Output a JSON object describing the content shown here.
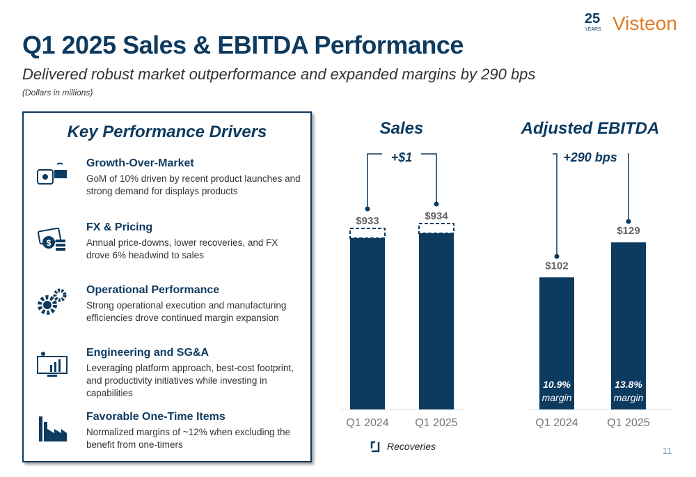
{
  "header": {
    "title": "Q1 2025 Sales & EBITDA Performance",
    "subtitle": "Delivered robust market outperformance and expanded margins by 290 bps",
    "note": "(Dollars in millions)"
  },
  "logo": {
    "years": "25",
    "years_label": "YEARS",
    "brand": "Visteon",
    "brand_color": "#e07b24"
  },
  "drivers": {
    "title": "Key Performance Drivers",
    "items": [
      {
        "icon": "car-display-icon",
        "heading": "Growth-Over-Market",
        "text": "GoM of 10% driven by recent product launches and strong demand for displays products"
      },
      {
        "icon": "money-icon",
        "heading": "FX & Pricing",
        "text": "Annual price-downs, lower recoveries, and FX drove 6% headwind to sales"
      },
      {
        "icon": "gears-icon",
        "heading": "Operational Performance",
        "text": "Strong operational execution and manufacturing efficiencies drove continued margin expansion"
      },
      {
        "icon": "monitor-chart-icon",
        "heading": "Engineering and SG&A",
        "text": "Leveraging platform approach, best-cost footprint, and productivity initiatives while investing in capabilities"
      },
      {
        "icon": "factory-icon",
        "heading": "Favorable One-Time Items",
        "text": "Normalized margins of ~12% when excluding the benefit from one-timers"
      }
    ]
  },
  "chart_data": [
    {
      "type": "bar",
      "title": "Sales",
      "categories": [
        "Q1 2024",
        "Q1 2025"
      ],
      "values": [
        933,
        934
      ],
      "labels": [
        "$933",
        "$934"
      ],
      "annotation": "+$1",
      "bar_color": "#0d3a5f",
      "legend": "Recoveries",
      "legend_placement": "bottom"
    },
    {
      "type": "bar",
      "title": "Adjusted EBITDA",
      "categories": [
        "Q1 2024",
        "Q1 2025"
      ],
      "values": [
        102,
        129
      ],
      "labels": [
        "$102",
        "$129"
      ],
      "margins": [
        "10.9%",
        "13.8%"
      ],
      "margin_label": "margin",
      "annotation": "+290 bps",
      "bar_color": "#0d3a5f"
    }
  ],
  "page_number": "11"
}
